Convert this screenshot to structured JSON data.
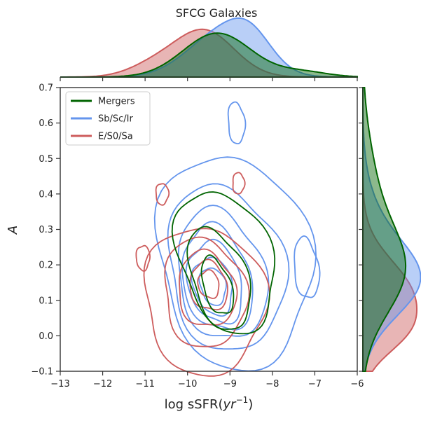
{
  "chart_data": {
    "type": "joint-kde-contour",
    "title": "SFCG Galaxies",
    "xlabel_prefix": "log sSFR(",
    "xlabel_var": "yr",
    "xlabel_exp": "−1",
    "xlabel_suffix": ")",
    "ylabel": "A",
    "xlim": [
      -13,
      -6
    ],
    "ylim": [
      -0.1,
      0.7
    ],
    "xticks": [
      -13,
      -12,
      -11,
      -10,
      -9,
      -8,
      -7,
      -6
    ],
    "xtick_labels": [
      "−13",
      "−12",
      "−11",
      "−10",
      "−9",
      "−8",
      "−7",
      "−6"
    ],
    "yticks": [
      -0.1,
      0.0,
      0.1,
      0.2,
      0.3,
      0.4,
      0.5,
      0.6,
      0.7
    ],
    "ytick_labels": [
      "−0.1",
      "0.0",
      "0.1",
      "0.2",
      "0.3",
      "0.4",
      "0.5",
      "0.6",
      "0.7"
    ],
    "legend_position": "upper-left",
    "series": [
      {
        "name": "Mergers",
        "color": "#006400",
        "contours": [
          {
            "level": 1,
            "center": [
              -9.1,
              0.21
            ],
            "rx": 1.45,
            "ry": 0.28,
            "angle": 0.8
          },
          {
            "level": 2,
            "center": [
              -9.25,
              0.16
            ],
            "rx": 0.85,
            "ry": 0.2,
            "angle": 0.78
          },
          {
            "level": 3,
            "center": [
              -9.3,
              0.14
            ],
            "rx": 0.42,
            "ry": 0.11,
            "angle": 0.75
          }
        ],
        "marginal_x": {
          "peaks": [
            [
              -9.3,
              1.0,
              0.8
            ],
            [
              -7.3,
              0.12,
              0.6
            ]
          ]
        },
        "marginal_y": {
          "peaks": [
            [
              0.18,
              0.78,
              0.12
            ],
            [
              0.4,
              0.25,
              0.15
            ]
          ]
        }
      },
      {
        "name": "Sb/Sc/Ir",
        "color": "#6495ED",
        "contours": [
          {
            "level": 1,
            "center": [
              -8.9,
              0.21
            ],
            "rx": 2.0,
            "ry": 0.34,
            "angle": 0.5
          },
          {
            "level": 2,
            "center": [
              -9.1,
              0.19
            ],
            "rx": 1.55,
            "ry": 0.27,
            "angle": 0.55
          },
          {
            "level": 3,
            "center": [
              -9.2,
              0.17
            ],
            "rx": 1.2,
            "ry": 0.22,
            "angle": 0.6
          },
          {
            "level": 4,
            "center": [
              -9.3,
              0.16
            ],
            "rx": 0.95,
            "ry": 0.18,
            "angle": 0.62
          },
          {
            "level": 5,
            "center": [
              -9.35,
              0.15
            ],
            "rx": 0.75,
            "ry": 0.14,
            "angle": 0.63
          },
          {
            "level": 6,
            "center": [
              -9.4,
              0.14
            ],
            "rx": 0.55,
            "ry": 0.1,
            "angle": 0.65
          },
          {
            "level": 7,
            "center": [
              -9.4,
              0.14
            ],
            "rx": 0.36,
            "ry": 0.065,
            "angle": 0.65
          },
          {
            "level": 8,
            "center": [
              -8.85,
              0.6
            ],
            "rx": 0.2,
            "ry": 0.06,
            "angle": 0.2
          },
          {
            "level": 9,
            "center": [
              -7.2,
              0.19
            ],
            "rx": 0.3,
            "ry": 0.09,
            "angle": 0.3
          }
        ],
        "marginal_x": {
          "peaks": [
            [
              -9.2,
              1.0,
              0.8
            ],
            [
              -8.5,
              0.55,
              0.5
            ]
          ]
        },
        "marginal_y": {
          "peaks": [
            [
              0.15,
              1.0,
              0.1
            ],
            [
              0.28,
              0.3,
              0.12
            ]
          ]
        }
      },
      {
        "name": "E/S0/Sa",
        "color": "#CD5C5C",
        "contours": [
          {
            "level": 1,
            "center": [
              -9.6,
              0.1
            ],
            "rx": 1.5,
            "ry": 0.22,
            "angle": 0.35
          },
          {
            "level": 2,
            "center": [
              -9.6,
              0.12
            ],
            "rx": 1.05,
            "ry": 0.17,
            "angle": 0.45
          },
          {
            "level": 3,
            "center": [
              -9.55,
              0.13
            ],
            "rx": 0.75,
            "ry": 0.12,
            "angle": 0.5
          },
          {
            "level": 4,
            "center": [
              -9.5,
              0.14
            ],
            "rx": 0.5,
            "ry": 0.08,
            "angle": 0.55
          },
          {
            "level": 5,
            "center": [
              -9.5,
              0.145
            ],
            "rx": 0.28,
            "ry": 0.045,
            "angle": 0.55
          },
          {
            "level": 6,
            "center": [
              -11.05,
              0.22
            ],
            "rx": 0.16,
            "ry": 0.035,
            "angle": 0
          },
          {
            "level": 7,
            "center": [
              -10.6,
              0.4
            ],
            "rx": 0.15,
            "ry": 0.03,
            "angle": 0
          },
          {
            "level": 8,
            "center": [
              -8.8,
              0.43
            ],
            "rx": 0.14,
            "ry": 0.03,
            "angle": 0
          }
        ],
        "marginal_x": {
          "peaks": [
            [
              -9.6,
              1.05,
              0.7
            ],
            [
              -10.8,
              0.25,
              0.6
            ]
          ]
        },
        "marginal_y": {
          "peaks": [
            [
              0.11,
              1.0,
              0.1
            ],
            [
              0.0,
              0.35,
              0.06
            ]
          ]
        }
      }
    ]
  }
}
